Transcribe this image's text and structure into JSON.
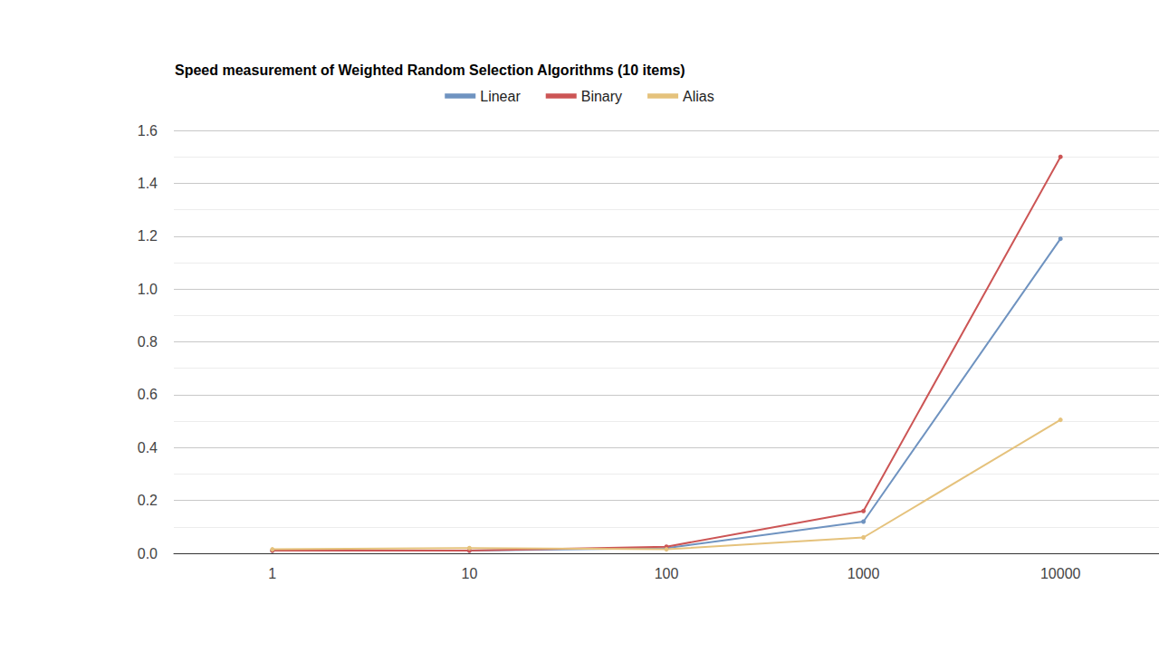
{
  "chart_data": {
    "type": "line",
    "title": "Speed measurement of Weighted Random Selection Algorithms (10 items)",
    "categories": [
      "1",
      "10",
      "100",
      "1000",
      "10000"
    ],
    "series": [
      {
        "name": "Linear",
        "color": "#6f93c0",
        "values": [
          0.01,
          0.01,
          0.02,
          0.12,
          1.19
        ]
      },
      {
        "name": "Binary",
        "color": "#cc5555",
        "values": [
          0.01,
          0.01,
          0.025,
          0.16,
          1.5
        ]
      },
      {
        "name": "Alias",
        "color": "#e5c27c",
        "values": [
          0.015,
          0.02,
          0.015,
          0.06,
          0.505
        ]
      }
    ],
    "ylim": [
      0,
      1.6
    ],
    "yticks": [
      {
        "value": 0,
        "label": "0.0"
      },
      0.2,
      0.4,
      0.6,
      0.8,
      {
        "value": 1,
        "label": "1.0"
      },
      1.2,
      1.4,
      1.6
    ],
    "grid": true,
    "legend": "top",
    "marker": "circle"
  }
}
